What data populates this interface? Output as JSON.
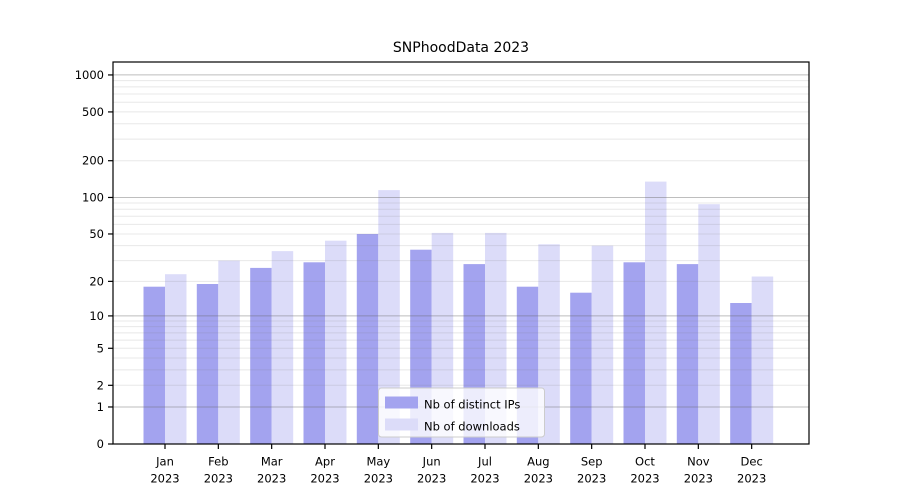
{
  "chart_data": {
    "type": "bar",
    "title": "SNPhoodData 2023",
    "categories": [
      "Jan",
      "Feb",
      "Mar",
      "Apr",
      "May",
      "Jun",
      "Jul",
      "Aug",
      "Sep",
      "Oct",
      "Nov",
      "Dec"
    ],
    "year_label": "2023",
    "series": [
      {
        "name": "Nb of distinct IPs",
        "color": "#a3a3ef",
        "values": [
          18,
          19,
          26,
          29,
          50,
          37,
          28,
          18,
          16,
          29,
          28,
          13
        ]
      },
      {
        "name": "Nb of downloads",
        "color": "#dcdcf9",
        "values": [
          23,
          30,
          36,
          44,
          115,
          51,
          51,
          41,
          40,
          135,
          88,
          22
        ]
      }
    ],
    "yscale": "log1p",
    "yticks": [
      0,
      1,
      2,
      5,
      10,
      20,
      50,
      100,
      200,
      500,
      1000
    ],
    "ylim": [
      0,
      1500
    ],
    "xlabel": "",
    "ylabel": "",
    "grid": "horizontal, log major (1,10,100,1000) + minor decades, drawn over bars",
    "legend_position": "inside lower-center"
  },
  "colors": {
    "axis": "#000000",
    "grid_major": "#b5b5b5",
    "grid_minor": "#e8e8e8",
    "background": "#ffffff",
    "legend_border": "#cccccc",
    "legend_background": "rgba(255,255,255,0.8)"
  }
}
